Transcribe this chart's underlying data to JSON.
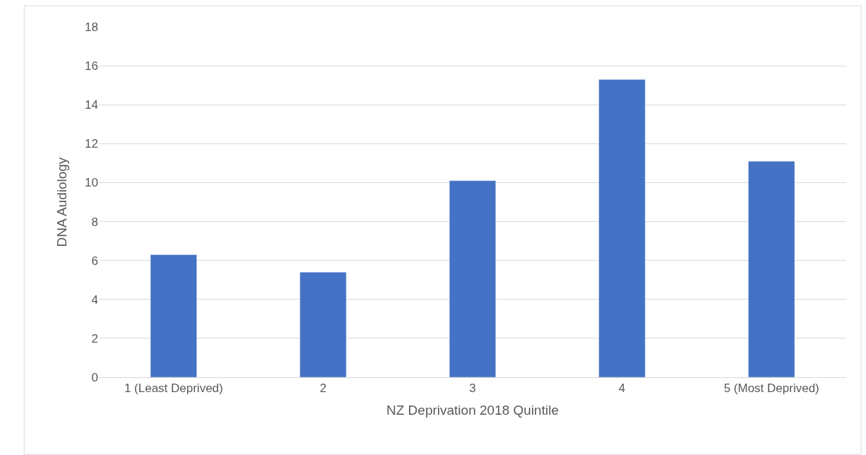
{
  "chart_data": {
    "type": "bar",
    "categories": [
      "1 (Least Deprived)",
      "2",
      "3",
      "4",
      "5 (Most Deprived)"
    ],
    "values": [
      6.3,
      5.4,
      10.1,
      15.3,
      11.1
    ],
    "color": "#4472c4",
    "xlabel": "NZ Deprivation 2018 Quintile",
    "ylabel": "DNA Audiology",
    "ylim": [
      0,
      18
    ],
    "yticks": [
      0,
      2,
      4,
      6,
      8,
      10,
      12,
      14,
      16,
      18
    ],
    "grid": "y"
  }
}
